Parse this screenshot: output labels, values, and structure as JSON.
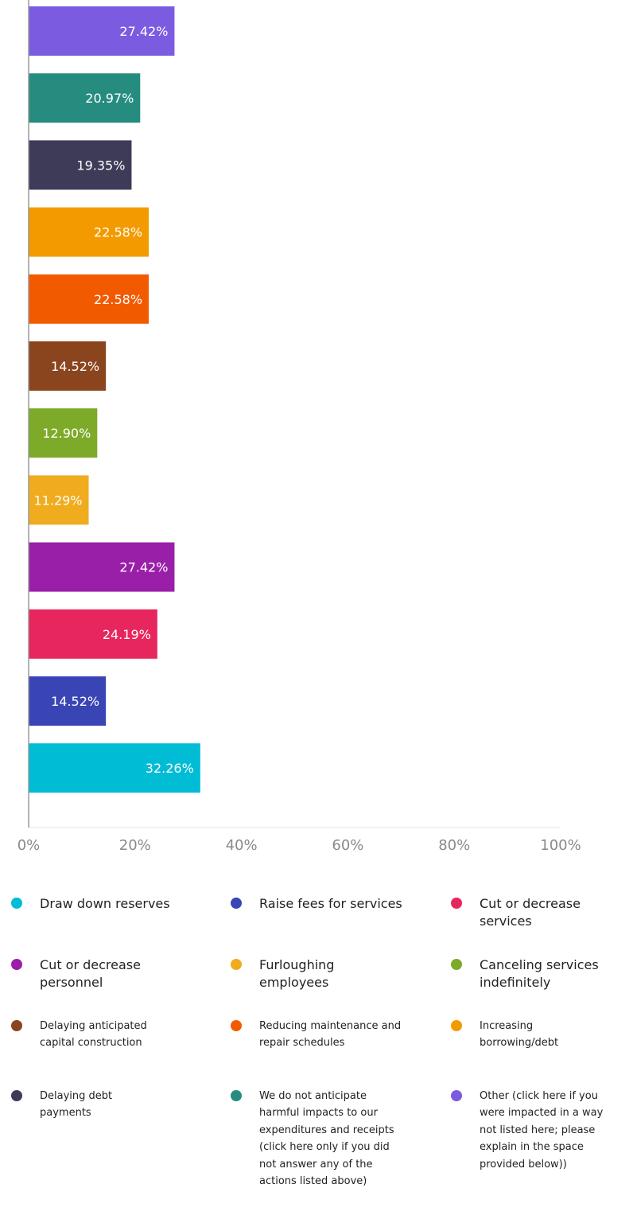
{
  "chart_data": {
    "type": "bar",
    "orientation": "horizontal",
    "categories": [
      "Other (click here if you were impacted in a way not listed here; please explain in the space provided below))",
      "We do not anticipate harmful impacts to our expenditures and receipts (click here only if you did not answer any of the actions listed above)",
      "Delaying debt payments",
      "Increasing borrowing/debt",
      "Reducing maintenance and repair schedules",
      "Delaying anticipated capital construction",
      "Canceling services indefinitely",
      "Furloughing employees",
      "Cut or decrease personnel",
      "Cut or decrease services",
      "Raise fees for services",
      "Draw down reserves"
    ],
    "values": [
      27.42,
      20.97,
      19.35,
      22.58,
      22.58,
      14.52,
      12.9,
      11.29,
      27.42,
      24.19,
      14.52,
      32.26
    ],
    "data_labels": [
      "27.42%",
      "20.97%",
      "19.35%",
      "22.58%",
      "22.58%",
      "14.52%",
      "12.90%",
      "11.29%",
      "27.42%",
      "24.19%",
      "14.52%",
      "32.26%"
    ],
    "colors": [
      "#7B5CE0",
      "#268C80",
      "#3D3B58",
      "#F39A00",
      "#F25A00",
      "#8A451E",
      "#7EAA2A",
      "#F0AC1E",
      "#9A1FA8",
      "#E8265E",
      "#3A45B5",
      "#00BCD4"
    ],
    "xlim": [
      0,
      100
    ],
    "x_ticks": [
      "0%",
      "20%",
      "40%",
      "60%",
      "80%",
      "100%"
    ],
    "x_tick_values": [
      0,
      20,
      40,
      60,
      80,
      100
    ],
    "grid": false,
    "legend_position": "bottom"
  },
  "legend": [
    {
      "label": "Draw down reserves",
      "color": "#00BCD4"
    },
    {
      "label": "Raise fees for services",
      "color": "#3A45B5"
    },
    {
      "label": "Cut or decrease services",
      "color": "#E8265E"
    },
    {
      "label": "Cut or decrease personnel",
      "color": "#9A1FA8"
    },
    {
      "label": "Furloughing employees",
      "color": "#F0AC1E"
    },
    {
      "label": "Canceling services indefinitely",
      "color": "#7EAA2A"
    },
    {
      "label": "Delaying anticipated capital construction",
      "color": "#8A451E"
    },
    {
      "label": "Reducing maintenance and repair schedules",
      "color": "#F25A00"
    },
    {
      "label": "Increasing borrowing/debt",
      "color": "#F39A00"
    },
    {
      "label": "Delaying debt payments",
      "color": "#3D3B58"
    },
    {
      "label": "We do not anticipate harmful impacts to our expenditures and receipts (click here only if you did not answer any of the actions listed above)",
      "color": "#268C80"
    },
    {
      "label": "Other (click here if you were impacted in a way not listed here; please explain in the space provided below))",
      "color": "#7B5CE0"
    }
  ]
}
